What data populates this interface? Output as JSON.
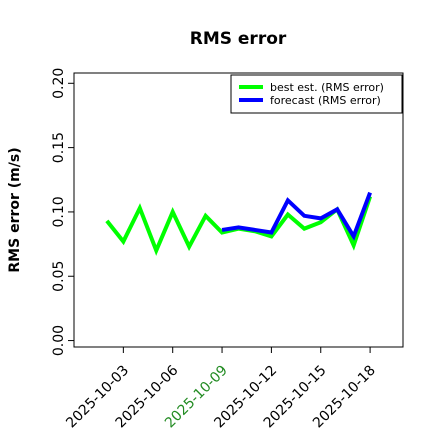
{
  "chart_data": {
    "type": "line",
    "title": "RMS error",
    "y_label": "RMS error (m/s)",
    "x": [
      "2025-10-02",
      "2025-10-03",
      "2025-10-04",
      "2025-10-05",
      "2025-10-06",
      "2025-10-07",
      "2025-10-08",
      "2025-10-09",
      "2025-10-10",
      "2025-10-11",
      "2025-10-12",
      "2025-10-13",
      "2025-10-14",
      "2025-10-15",
      "2025-10-16",
      "2025-10-17",
      "2025-10-18"
    ],
    "series": [
      {
        "name": "best est. (RMS error)",
        "color": "#00ff00",
        "values": [
          0.093,
          0.077,
          0.103,
          0.07,
          0.1,
          0.073,
          0.097,
          0.084,
          0.087,
          0.085,
          0.081,
          0.098,
          0.087,
          0.092,
          0.102,
          0.074,
          0.112
        ]
      },
      {
        "name": "forecast (RMS error)",
        "color": "#0000ff",
        "values": [
          null,
          null,
          null,
          null,
          null,
          null,
          null,
          0.086,
          0.088,
          0.086,
          0.084,
          0.109,
          0.097,
          0.095,
          0.102,
          0.081,
          0.115
        ]
      }
    ],
    "xlim": [
      "2025-09-30",
      "2025-10-20"
    ],
    "xticks": [
      "2025-10-03",
      "2025-10-06",
      "2025-10-09",
      "2025-10-12",
      "2025-10-15",
      "2025-10-18"
    ],
    "highlight_xtick_index": 2,
    "highlight_color": "#228b22",
    "ylim": [
      -0.005,
      0.208
    ],
    "yticks": [
      {
        "value": 0,
        "label": "0.00"
      },
      {
        "value": 0.05,
        "label": "0.05"
      },
      {
        "value": 0.1,
        "label": "0.10"
      },
      {
        "value": 0.15,
        "label": "0.15"
      },
      {
        "value": 0.2,
        "label": "0.20"
      }
    ],
    "legend": "top-right"
  }
}
